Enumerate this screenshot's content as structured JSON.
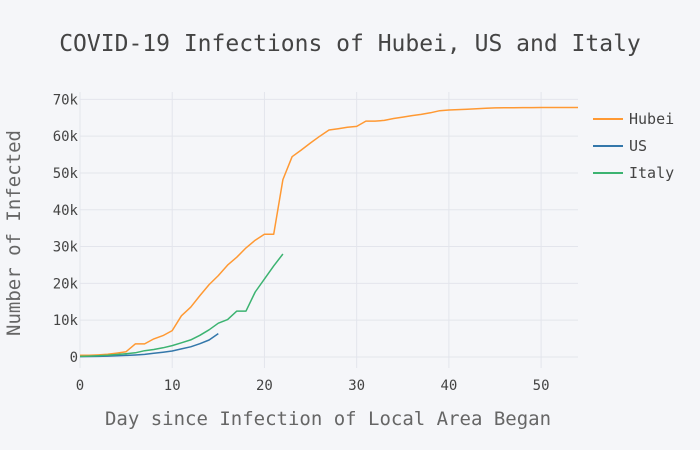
{
  "chart_data": {
    "type": "line",
    "title": "COVID-19 Infections of Hubei, US and Italy",
    "xlabel": "Day since Infection of Local Area Began",
    "ylabel": "Number of Infected",
    "xlim": [
      0,
      54
    ],
    "ylim": [
      -3000,
      72000
    ],
    "x_ticks": [
      0,
      10,
      20,
      30,
      40,
      50
    ],
    "x_tick_labels": [
      "0",
      "10",
      "20",
      "30",
      "40",
      "50"
    ],
    "y_ticks": [
      0,
      10000,
      20000,
      30000,
      40000,
      50000,
      60000,
      70000
    ],
    "y_tick_labels": [
      "0",
      "10k",
      "20k",
      "30k",
      "40k",
      "50k",
      "60k",
      "70k"
    ],
    "grid": true,
    "legend_position": "right",
    "series": [
      {
        "name": "Hubei",
        "color": "#ff9933",
        "points": [
          [
            0,
            444
          ],
          [
            1,
            444
          ],
          [
            2,
            549
          ],
          [
            3,
            729
          ],
          [
            4,
            1052
          ],
          [
            5,
            1423
          ],
          [
            6,
            3554
          ],
          [
            7,
            3554
          ],
          [
            8,
            4903
          ],
          [
            9,
            5806
          ],
          [
            10,
            7153
          ],
          [
            11,
            11177
          ],
          [
            12,
            13522
          ],
          [
            13,
            16678
          ],
          [
            14,
            19665
          ],
          [
            15,
            22112
          ],
          [
            16,
            24953
          ],
          [
            17,
            27100
          ],
          [
            18,
            29631
          ],
          [
            19,
            31728
          ],
          [
            20,
            33366
          ],
          [
            21,
            33366
          ],
          [
            22,
            48206
          ],
          [
            23,
            54406
          ],
          [
            24,
            56249
          ],
          [
            25,
            58182
          ],
          [
            26,
            59989
          ],
          [
            27,
            61682
          ],
          [
            28,
            62031
          ],
          [
            29,
            62442
          ],
          [
            30,
            62662
          ],
          [
            31,
            64084
          ],
          [
            32,
            64084
          ],
          [
            33,
            64287
          ],
          [
            34,
            64786
          ],
          [
            35,
            65187
          ],
          [
            36,
            65596
          ],
          [
            37,
            65914
          ],
          [
            38,
            66337
          ],
          [
            39,
            66907
          ],
          [
            40,
            67103
          ],
          [
            41,
            67217
          ],
          [
            42,
            67332
          ],
          [
            43,
            67466
          ],
          [
            44,
            67592
          ],
          [
            45,
            67666
          ],
          [
            46,
            67707
          ],
          [
            47,
            67743
          ],
          [
            48,
            67760
          ],
          [
            49,
            67773
          ],
          [
            50,
            67781
          ],
          [
            51,
            67786
          ],
          [
            52,
            67790
          ],
          [
            53,
            67794
          ],
          [
            54,
            67798
          ]
        ]
      },
      {
        "name": "US",
        "color": "#3377aa",
        "points": [
          [
            0,
            100
          ],
          [
            1,
            124
          ],
          [
            2,
            158
          ],
          [
            3,
            221
          ],
          [
            4,
            319
          ],
          [
            5,
            435
          ],
          [
            6,
            541
          ],
          [
            7,
            704
          ],
          [
            8,
            994
          ],
          [
            9,
            1301
          ],
          [
            10,
            1630
          ],
          [
            11,
            2183
          ],
          [
            12,
            2770
          ],
          [
            13,
            3613
          ],
          [
            14,
            4596
          ],
          [
            15,
            6344
          ]
        ]
      },
      {
        "name": "Italy",
        "color": "#3cb371",
        "points": [
          [
            0,
            155
          ],
          [
            1,
            229
          ],
          [
            2,
            322
          ],
          [
            3,
            453
          ],
          [
            4,
            655
          ],
          [
            5,
            888
          ],
          [
            6,
            1128
          ],
          [
            7,
            1694
          ],
          [
            8,
            2036
          ],
          [
            9,
            2502
          ],
          [
            10,
            3089
          ],
          [
            11,
            3858
          ],
          [
            12,
            4636
          ],
          [
            13,
            5883
          ],
          [
            14,
            7375
          ],
          [
            15,
            9172
          ],
          [
            16,
            10149
          ],
          [
            17,
            12462
          ],
          [
            18,
            12462
          ],
          [
            19,
            17660
          ],
          [
            20,
            21157
          ],
          [
            21,
            24747
          ],
          [
            22,
            27980
          ]
        ]
      }
    ]
  }
}
